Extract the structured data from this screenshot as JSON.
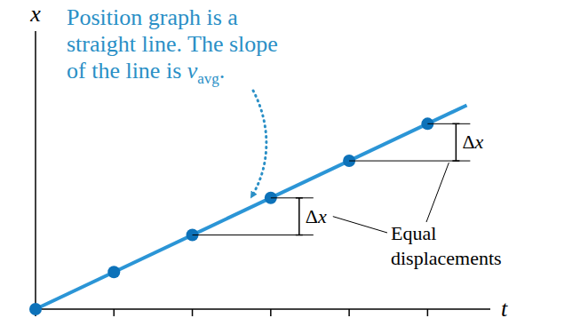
{
  "chart_data": {
    "type": "line",
    "y_label": "x",
    "x_label": "t",
    "annotation": {
      "lines": [
        "Position graph is a",
        "straight line. The slope",
        "of the line is"
      ],
      "symbol": "v",
      "subscript": "avg",
      "end": ".",
      "color": "#2a8fc6"
    },
    "series": [
      {
        "type": "line",
        "color": "#2b95d6",
        "line_style": "solid",
        "x": [
          0,
          5.5
        ],
        "values": [
          0,
          5.5
        ]
      },
      {
        "type": "scatter",
        "color": "#0d72b9",
        "marker": "circle",
        "x": [
          0,
          1,
          2,
          3,
          4,
          5
        ],
        "values": [
          0,
          1,
          2,
          3,
          4,
          5
        ]
      }
    ],
    "displacements": {
      "label": "Δx",
      "label_text": "Equal displacements",
      "spans": [
        {
          "t": [
            2,
            3
          ],
          "values": [
            2,
            3
          ]
        },
        {
          "t": [
            4,
            5
          ],
          "values": [
            4,
            5
          ]
        }
      ]
    },
    "xlim": [
      0,
      5.8
    ],
    "ylim": [
      0,
      7.5
    ],
    "xticks": [
      0,
      1,
      2,
      3,
      4,
      5
    ],
    "tick_labels": false,
    "grid": false
  }
}
